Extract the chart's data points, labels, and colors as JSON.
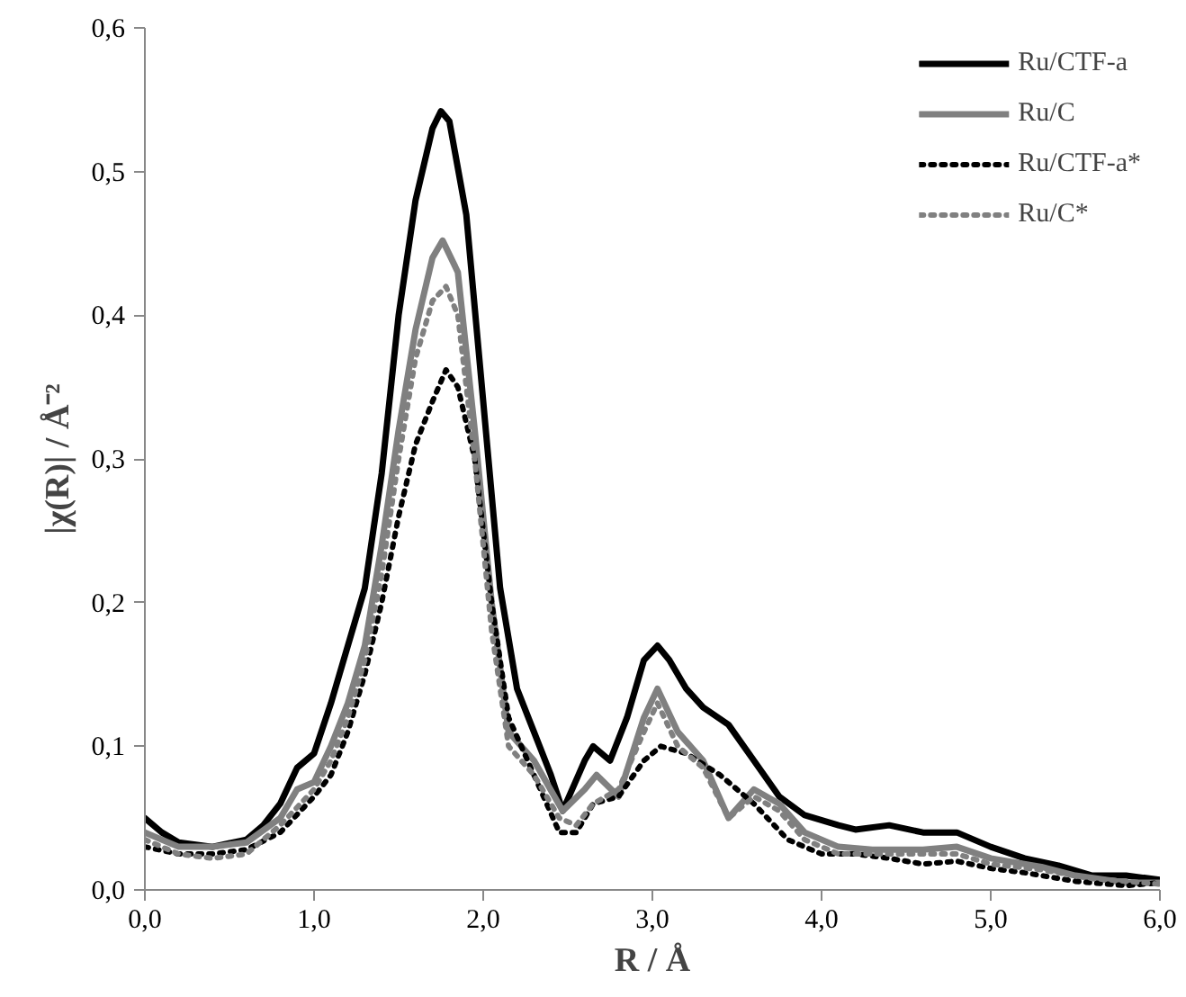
{
  "chart_data": {
    "type": "line",
    "xlabel": "R / Å",
    "ylabel": "|χ(R)| / Å⁻²",
    "xlim": [
      0,
      6
    ],
    "ylim": [
      0,
      0.6
    ],
    "xticks": [
      {
        "value": 0,
        "label": "0,0"
      },
      {
        "value": 1,
        "label": "1,0"
      },
      {
        "value": 2,
        "label": "2,0"
      },
      {
        "value": 3,
        "label": "3,0"
      },
      {
        "value": 4,
        "label": "4,0"
      },
      {
        "value": 5,
        "label": "5,0"
      },
      {
        "value": 6,
        "label": "6,0"
      }
    ],
    "yticks": [
      {
        "value": 0,
        "label": "0,0"
      },
      {
        "value": 0.1,
        "label": "0,1"
      },
      {
        "value": 0.2,
        "label": "0,2"
      },
      {
        "value": 0.3,
        "label": "0,3"
      },
      {
        "value": 0.4,
        "label": "0,4"
      },
      {
        "value": 0.5,
        "label": "0,5"
      },
      {
        "value": 0.6,
        "label": "0,6"
      }
    ],
    "grid": false,
    "legend": "top right",
    "marker": "none",
    "series": [
      {
        "name": "Ru/CTF-a",
        "color": "#000000",
        "line_style": "solid",
        "x": [
          0,
          0.1,
          0.2,
          0.4,
          0.6,
          0.7,
          0.8,
          0.9,
          1.0,
          1.1,
          1.2,
          1.3,
          1.4,
          1.5,
          1.6,
          1.7,
          1.75,
          1.8,
          1.9,
          2.0,
          2.1,
          2.2,
          2.3,
          2.4,
          2.47,
          2.6,
          2.65,
          2.75,
          2.85,
          2.95,
          3.03,
          3.1,
          3.2,
          3.3,
          3.45,
          3.6,
          3.75,
          3.9,
          4.1,
          4.2,
          4.4,
          4.6,
          4.8,
          5.0,
          5.2,
          5.4,
          5.6,
          5.8,
          6.0
        ],
        "values": [
          0.05,
          0.04,
          0.033,
          0.03,
          0.035,
          0.045,
          0.06,
          0.085,
          0.095,
          0.13,
          0.17,
          0.21,
          0.29,
          0.4,
          0.48,
          0.53,
          0.542,
          0.535,
          0.47,
          0.34,
          0.21,
          0.14,
          0.11,
          0.08,
          0.055,
          0.09,
          0.1,
          0.09,
          0.12,
          0.16,
          0.17,
          0.16,
          0.14,
          0.127,
          0.115,
          0.09,
          0.065,
          0.052,
          0.045,
          0.042,
          0.045,
          0.04,
          0.04,
          0.03,
          0.022,
          0.017,
          0.01,
          0.01,
          0.007
        ]
      },
      {
        "name": "Ru/C",
        "color": "#808080",
        "line_style": "solid",
        "x": [
          0,
          0.2,
          0.4,
          0.6,
          0.8,
          0.9,
          1.0,
          1.1,
          1.2,
          1.3,
          1.4,
          1.5,
          1.6,
          1.7,
          1.76,
          1.85,
          1.95,
          2.05,
          2.15,
          2.3,
          2.47,
          2.6,
          2.67,
          2.8,
          2.95,
          3.03,
          3.15,
          3.3,
          3.45,
          3.6,
          3.75,
          3.9,
          4.1,
          4.3,
          4.6,
          4.8,
          5.0,
          5.3,
          5.5,
          5.8,
          6.0
        ],
        "values": [
          0.04,
          0.03,
          0.03,
          0.033,
          0.05,
          0.07,
          0.075,
          0.1,
          0.13,
          0.17,
          0.24,
          0.32,
          0.39,
          0.44,
          0.452,
          0.43,
          0.32,
          0.2,
          0.11,
          0.09,
          0.055,
          0.07,
          0.08,
          0.065,
          0.12,
          0.14,
          0.11,
          0.09,
          0.05,
          0.07,
          0.06,
          0.04,
          0.03,
          0.028,
          0.028,
          0.03,
          0.022,
          0.016,
          0.01,
          0.005,
          0.005
        ]
      },
      {
        "name": "Ru/CTF-a*",
        "color": "#000000",
        "line_style": "dotted",
        "x": [
          0,
          0.2,
          0.4,
          0.6,
          0.8,
          1.0,
          1.1,
          1.2,
          1.3,
          1.4,
          1.5,
          1.6,
          1.7,
          1.78,
          1.85,
          1.95,
          2.05,
          2.15,
          2.3,
          2.45,
          2.55,
          2.65,
          2.8,
          2.95,
          3.05,
          3.2,
          3.4,
          3.6,
          3.8,
          4.0,
          4.2,
          4.4,
          4.6,
          4.8,
          5.0,
          5.2,
          5.5,
          5.8,
          6.0
        ],
        "values": [
          0.03,
          0.025,
          0.025,
          0.028,
          0.04,
          0.065,
          0.08,
          0.11,
          0.15,
          0.2,
          0.26,
          0.31,
          0.34,
          0.362,
          0.35,
          0.3,
          0.2,
          0.12,
          0.08,
          0.04,
          0.04,
          0.06,
          0.065,
          0.09,
          0.1,
          0.095,
          0.08,
          0.06,
          0.035,
          0.025,
          0.025,
          0.022,
          0.018,
          0.02,
          0.015,
          0.012,
          0.006,
          0.003,
          0.005
        ]
      },
      {
        "name": "Ru/C*",
        "color": "#808080",
        "line_style": "dotted",
        "x": [
          0,
          0.2,
          0.4,
          0.6,
          0.8,
          1.0,
          1.1,
          1.2,
          1.3,
          1.4,
          1.5,
          1.6,
          1.7,
          1.78,
          1.85,
          1.95,
          2.05,
          2.15,
          2.3,
          2.45,
          2.55,
          2.65,
          2.8,
          2.95,
          3.03,
          3.15,
          3.3,
          3.45,
          3.6,
          3.75,
          3.9,
          4.1,
          4.3,
          4.6,
          4.8,
          5.0,
          5.3,
          5.6,
          6.0
        ],
        "values": [
          0.035,
          0.025,
          0.022,
          0.025,
          0.045,
          0.07,
          0.09,
          0.12,
          0.16,
          0.22,
          0.3,
          0.37,
          0.41,
          0.42,
          0.4,
          0.3,
          0.18,
          0.1,
          0.08,
          0.05,
          0.045,
          0.06,
          0.07,
          0.11,
          0.13,
          0.1,
          0.085,
          0.05,
          0.065,
          0.055,
          0.035,
          0.025,
          0.025,
          0.025,
          0.025,
          0.018,
          0.014,
          0.008,
          0.004
        ]
      }
    ]
  }
}
